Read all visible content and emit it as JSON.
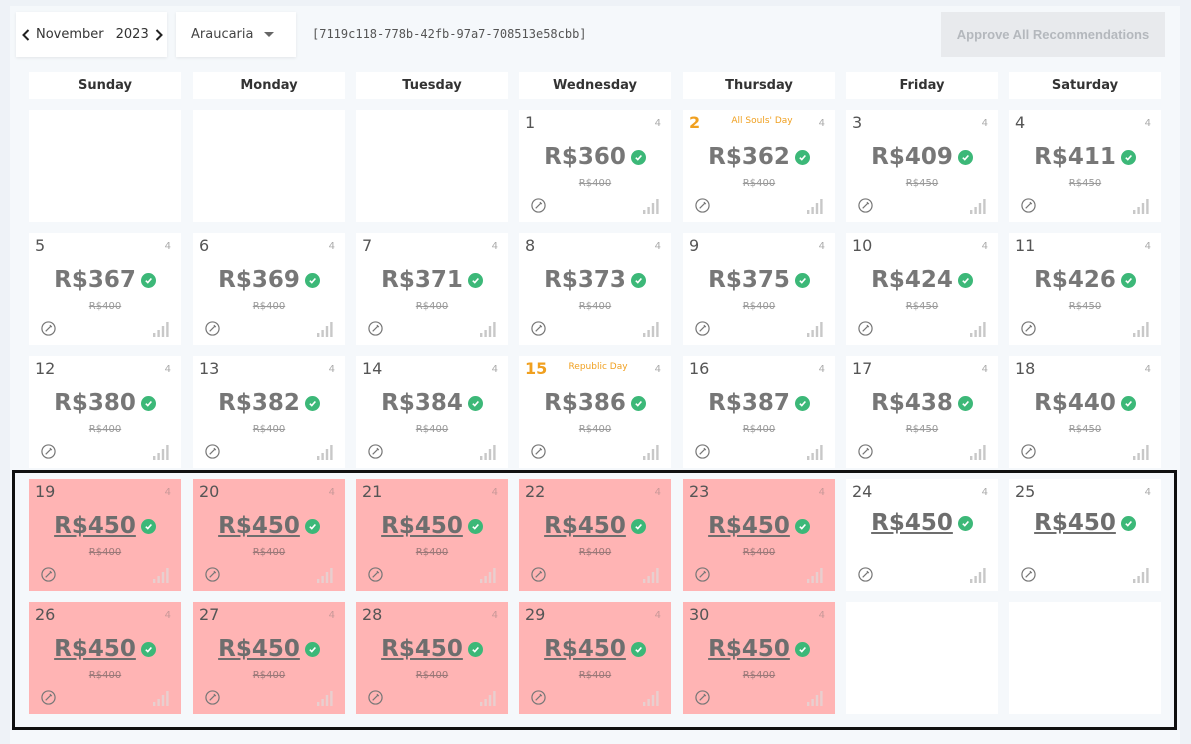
{
  "header": {
    "month": "November",
    "year": "2023",
    "city": "Araucaria",
    "uuid": "[7119c118-778b-42fb-97a7-708513e58cbb]",
    "approve_label": "Approve All Recommendations"
  },
  "weekdays": [
    "Sunday",
    "Monday",
    "Tuesday",
    "Wednesday",
    "Thursday",
    "Friday",
    "Saturday"
  ],
  "colors": {
    "check": "#3cb878",
    "holiday": "#f0a020",
    "past": "#ffb4b4"
  },
  "days": [
    {
      "day": "1",
      "price": "R$360",
      "old": "R$400",
      "occ": "4",
      "holiday": "",
      "state": "normal"
    },
    {
      "day": "2",
      "price": "R$362",
      "old": "R$400",
      "occ": "4",
      "holiday": "All Souls' Day",
      "state": "normal"
    },
    {
      "day": "3",
      "price": "R$409",
      "old": "R$450",
      "occ": "4",
      "holiday": "",
      "state": "normal"
    },
    {
      "day": "4",
      "price": "R$411",
      "old": "R$450",
      "occ": "4",
      "holiday": "",
      "state": "normal"
    },
    {
      "day": "5",
      "price": "R$367",
      "old": "R$400",
      "occ": "4",
      "holiday": "",
      "state": "normal"
    },
    {
      "day": "6",
      "price": "R$369",
      "old": "R$400",
      "occ": "4",
      "holiday": "",
      "state": "normal"
    },
    {
      "day": "7",
      "price": "R$371",
      "old": "R$400",
      "occ": "4",
      "holiday": "",
      "state": "normal"
    },
    {
      "day": "8",
      "price": "R$373",
      "old": "R$400",
      "occ": "4",
      "holiday": "",
      "state": "normal"
    },
    {
      "day": "9",
      "price": "R$375",
      "old": "R$400",
      "occ": "4",
      "holiday": "",
      "state": "normal"
    },
    {
      "day": "10",
      "price": "R$424",
      "old": "R$450",
      "occ": "4",
      "holiday": "",
      "state": "normal"
    },
    {
      "day": "11",
      "price": "R$426",
      "old": "R$450",
      "occ": "4",
      "holiday": "",
      "state": "normal"
    },
    {
      "day": "12",
      "price": "R$380",
      "old": "R$400",
      "occ": "4",
      "holiday": "",
      "state": "normal"
    },
    {
      "day": "13",
      "price": "R$382",
      "old": "R$400",
      "occ": "4",
      "holiday": "",
      "state": "normal"
    },
    {
      "day": "14",
      "price": "R$384",
      "old": "R$400",
      "occ": "4",
      "holiday": "",
      "state": "normal"
    },
    {
      "day": "15",
      "price": "R$386",
      "old": "R$400",
      "occ": "4",
      "holiday": "Republic Day",
      "state": "normal"
    },
    {
      "day": "16",
      "price": "R$387",
      "old": "R$400",
      "occ": "4",
      "holiday": "",
      "state": "normal"
    },
    {
      "day": "17",
      "price": "R$438",
      "old": "R$450",
      "occ": "4",
      "holiday": "",
      "state": "normal"
    },
    {
      "day": "18",
      "price": "R$440",
      "old": "R$450",
      "occ": "4",
      "holiday": "",
      "state": "normal"
    },
    {
      "day": "19",
      "price": "R$450",
      "old": "R$400",
      "occ": "4",
      "holiday": "",
      "state": "past"
    },
    {
      "day": "20",
      "price": "R$450",
      "old": "R$400",
      "occ": "4",
      "holiday": "",
      "state": "past"
    },
    {
      "day": "21",
      "price": "R$450",
      "old": "R$400",
      "occ": "4",
      "holiday": "",
      "state": "past"
    },
    {
      "day": "22",
      "price": "R$450",
      "old": "R$400",
      "occ": "4",
      "holiday": "",
      "state": "past"
    },
    {
      "day": "23",
      "price": "R$450",
      "old": "R$400",
      "occ": "4",
      "holiday": "",
      "state": "past"
    },
    {
      "day": "24",
      "price": "R$450",
      "old": "",
      "occ": "4",
      "holiday": "",
      "state": "approved"
    },
    {
      "day": "25",
      "price": "R$450",
      "old": "",
      "occ": "4",
      "holiday": "",
      "state": "approved"
    },
    {
      "day": "26",
      "price": "R$450",
      "old": "R$400",
      "occ": "4",
      "holiday": "",
      "state": "past"
    },
    {
      "day": "27",
      "price": "R$450",
      "old": "R$400",
      "occ": "4",
      "holiday": "",
      "state": "past"
    },
    {
      "day": "28",
      "price": "R$450",
      "old": "R$400",
      "occ": "4",
      "holiday": "",
      "state": "past"
    },
    {
      "day": "29",
      "price": "R$450",
      "old": "R$400",
      "occ": "4",
      "holiday": "",
      "state": "past"
    },
    {
      "day": "30",
      "price": "R$450",
      "old": "R$400",
      "occ": "4",
      "holiday": "",
      "state": "past"
    }
  ]
}
